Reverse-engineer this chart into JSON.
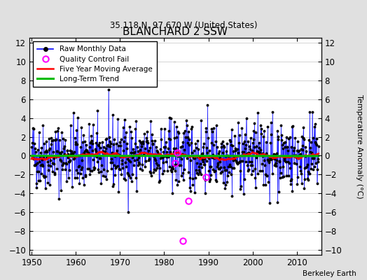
{
  "title": "BLANCHARD 2 SSW",
  "subtitle": "35.118 N, 97.670 W (United States)",
  "ylabel": "Temperature Anomaly (°C)",
  "credit": "Berkeley Earth",
  "ylim": [
    -10.5,
    12.5
  ],
  "yticks": [
    -10,
    -8,
    -6,
    -4,
    -2,
    0,
    2,
    4,
    6,
    8,
    10,
    12
  ],
  "xlim": [
    1949.5,
    2015.5
  ],
  "xticks": [
    1950,
    1960,
    1970,
    1980,
    1990,
    2000,
    2010
  ],
  "fig_bg_color": "#e0e0e0",
  "plot_bg_color": "#ffffff",
  "raw_color": "#0000ff",
  "ma_color": "#ff0000",
  "trend_color": "#00bb00",
  "qc_color": "#ff00ff",
  "grid_color": "#cccccc",
  "seed": 42,
  "years_start": 1950,
  "years_end": 2014,
  "raw_std": 1.8,
  "ma_window": 60,
  "qc_x": [
    1984.25,
    1983.0,
    1982.5,
    1989.5,
    1985.5
  ],
  "qc_y": [
    -9.0,
    0.3,
    -0.8,
    -2.3,
    -4.8
  ]
}
